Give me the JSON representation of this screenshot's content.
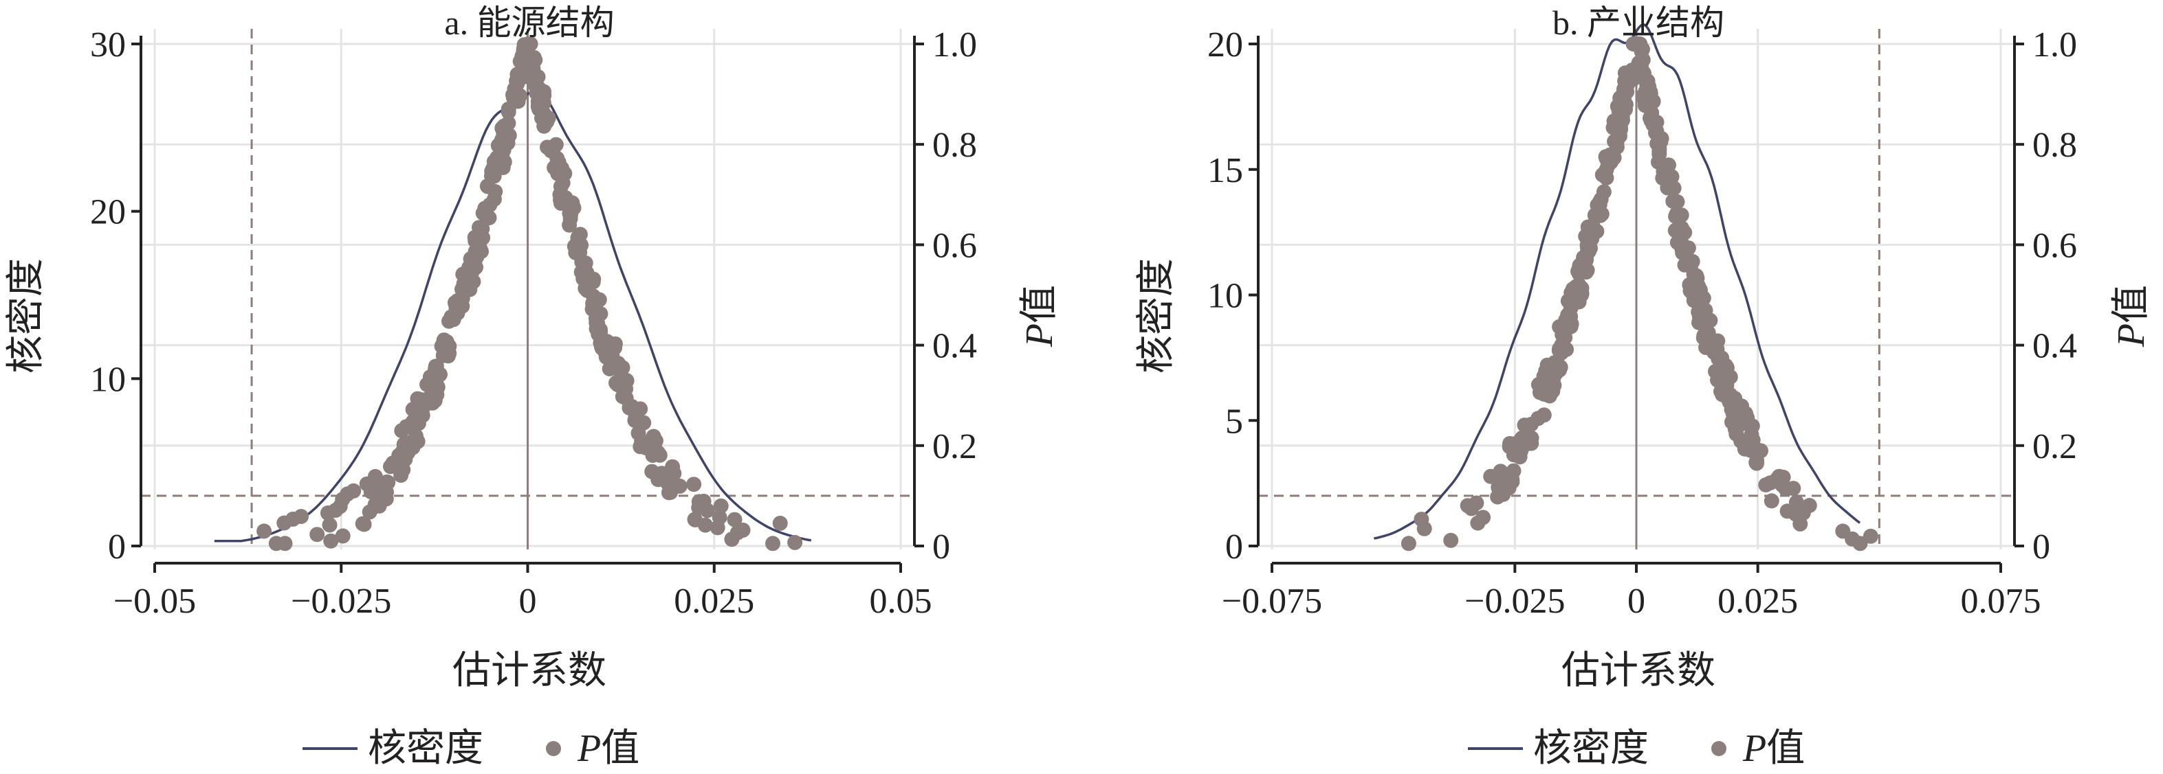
{
  "colors": {
    "background": "#ffffff",
    "grid": "#e4e4e4",
    "axis": "#222222",
    "density_line": "#3f4468",
    "points": "#8a7f7d",
    "ref_line": "#8a7f7d"
  },
  "legend": {
    "density_label": "核密度",
    "p_prefix": "P",
    "p_suffix": "值"
  },
  "chart_data": [
    {
      "type": "scatter",
      "title": "a. 能源结构",
      "xlabel": "估计系数",
      "ylabel_left": "核密度",
      "ylabel_right_prefix": "P",
      "ylabel_right_suffix": "值",
      "xlim": [
        -0.05,
        0.05
      ],
      "ylim_left": [
        0,
        30
      ],
      "ylim_right": [
        0,
        1
      ],
      "x_ticks": [
        -0.05,
        -0.025,
        0,
        0.025,
        0.05
      ],
      "x_tick_labels": [
        "−0.05",
        "−0.025",
        "0",
        "0.025",
        "0.05"
      ],
      "y_left_ticks": [
        0,
        10,
        20,
        30
      ],
      "y_left_tick_labels": [
        "0",
        "10",
        "20",
        "30"
      ],
      "y_right_ticks": [
        0,
        0.2,
        0.4,
        0.6,
        0.8,
        1.0
      ],
      "y_right_tick_labels": [
        "0",
        "0.2",
        "0.4",
        "0.6",
        "0.8",
        "1.0"
      ],
      "ref_vertical_dashed": -0.037,
      "ref_horizontal_dashed_p": 0.1,
      "zero_line": 0,
      "density_peak": 27,
      "density_sigma": 0.0128,
      "density_support": [
        -0.042,
        0.038
      ],
      "p_value_points": {
        "count": 360,
        "x_range": [
          -0.042,
          0.039
        ],
        "profile": "two-sided normal p-value, p = 2·(1−Φ(|x|/0.0128))",
        "seed": 7
      }
    },
    {
      "type": "scatter",
      "title": "b. 产业结构",
      "xlabel": "估计系数",
      "ylabel_left": "核密度",
      "ylabel_right_prefix": "P",
      "ylabel_right_suffix": "值",
      "xlim": [
        -0.075,
        0.075
      ],
      "ylim_left": [
        0,
        20
      ],
      "ylim_right": [
        0,
        1
      ],
      "x_ticks": [
        -0.075,
        -0.025,
        0,
        0.025,
        0.075
      ],
      "x_tick_labels": [
        "−0.075",
        "−0.025",
        "0",
        "0.025",
        "0.075"
      ],
      "y_left_ticks": [
        0,
        5,
        10,
        15,
        20
      ],
      "y_left_tick_labels": [
        "0",
        "5",
        "10",
        "15",
        "20"
      ],
      "y_right_ticks": [
        0,
        0.2,
        0.4,
        0.6,
        0.8,
        1.0
      ],
      "y_right_tick_labels": [
        "0",
        "0.2",
        "0.4",
        "0.6",
        "0.8",
        "1.0"
      ],
      "ref_vertical_dashed": 0.05,
      "ref_horizontal_dashed_p": 0.1,
      "zero_line": 0,
      "density_peak": 20.5,
      "density_sigma": 0.0185,
      "density_support": [
        -0.054,
        0.046
      ],
      "p_value_points": {
        "count": 360,
        "x_range": [
          -0.054,
          0.05
        ],
        "profile": "two-sided normal p-value, p = 2·(1−Φ(|x|/0.0185))",
        "seed": 11
      }
    }
  ]
}
